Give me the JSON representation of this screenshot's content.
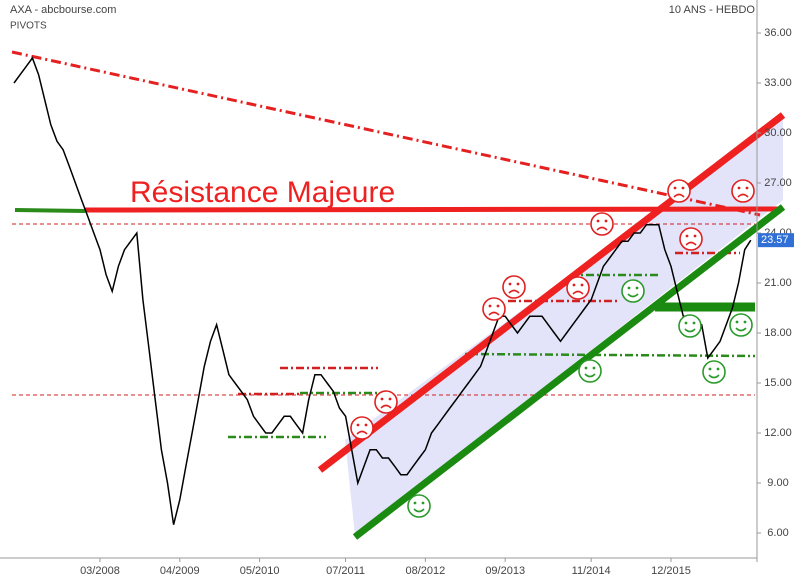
{
  "chart_data": {
    "type": "line",
    "title": "AXA - abcbourse.com",
    "subtitle": "PIVOTS",
    "period_label": "10 ANS - HEBDO",
    "annotation": "Résistance Majeure",
    "categories": [
      null,
      null,
      null,
      null,
      null,
      null,
      null,
      null,
      null,
      null,
      null,
      null,
      null,
      null,
      "03/2008",
      null,
      null,
      null,
      null,
      null,
      null,
      null,
      null,
      null,
      null,
      null,
      null,
      "04/2009",
      null,
      null,
      null,
      null,
      null,
      null,
      null,
      null,
      null,
      null,
      null,
      null,
      "05/2010",
      null,
      null,
      null,
      null,
      null,
      null,
      null,
      null,
      null,
      null,
      null,
      null,
      null,
      "07/2011",
      null,
      null,
      null,
      null,
      null,
      null,
      null,
      null,
      null,
      null,
      null,
      null,
      "08/2012",
      null,
      null,
      null,
      null,
      null,
      null,
      null,
      null,
      null,
      null,
      null,
      null,
      "09/2013",
      null,
      null,
      null,
      null,
      null,
      null,
      null,
      null,
      null,
      null,
      null,
      null,
      null,
      "11/2014",
      null,
      null,
      null,
      null,
      null,
      null,
      null,
      null,
      null,
      null,
      null,
      null,
      "12/2015",
      null,
      null,
      null,
      null,
      null,
      null,
      null,
      null,
      null,
      null,
      null,
      null,
      null
    ],
    "series": [
      {
        "name": "AXA",
        "color": "#000000",
        "values": [
          33,
          33.5,
          34,
          34.5,
          33.5,
          32,
          30.5,
          29.5,
          29,
          28,
          27,
          26,
          25,
          24,
          23,
          21.5,
          20.5,
          22,
          23,
          23.5,
          24,
          20,
          17,
          14,
          11,
          9,
          6.5,
          8,
          10,
          12,
          14,
          16,
          17.5,
          18.5,
          17,
          15.5,
          15,
          14.5,
          14,
          13,
          12.5,
          12,
          12,
          12.5,
          13,
          13,
          12.5,
          12,
          14,
          15.5,
          15.5,
          15,
          14.5,
          13.5,
          13,
          11,
          9,
          10,
          11,
          11,
          10.5,
          10.5,
          10,
          9.5,
          9.5,
          10,
          10.5,
          11,
          12,
          12.5,
          13,
          13.5,
          14,
          14.5,
          15,
          15.5,
          16,
          17,
          18,
          19,
          19,
          18.5,
          18,
          18.5,
          19,
          19,
          19,
          18.5,
          18,
          17.5,
          18,
          18.5,
          19,
          19.5,
          20,
          21,
          22,
          22.5,
          23,
          23.5,
          23.5,
          24,
          24,
          24.5,
          24.5,
          24.5,
          23,
          22,
          20.5,
          19,
          19,
          18.5,
          18.5,
          16.5,
          17,
          17.5,
          18.5,
          19.5,
          21,
          23,
          23.57
        ]
      }
    ],
    "ylim": [
      4.5,
      37.5
    ],
    "yticks": [
      {
        "value": 6,
        "label": "6.00"
      },
      {
        "value": 9,
        "label": "9.00"
      },
      {
        "value": 12,
        "label": "12.00"
      },
      {
        "value": 15,
        "label": "15.00"
      },
      {
        "value": 18,
        "label": "18.00"
      },
      {
        "value": 21,
        "label": "21.00"
      },
      {
        "value": 24,
        "label": "24.00"
      },
      {
        "value": 27,
        "label": "27.00"
      },
      {
        "value": 30,
        "label": "30.00"
      },
      {
        "value": 33,
        "label": "33.00"
      },
      {
        "value": 36,
        "label": "36.00"
      }
    ]
  }
}
